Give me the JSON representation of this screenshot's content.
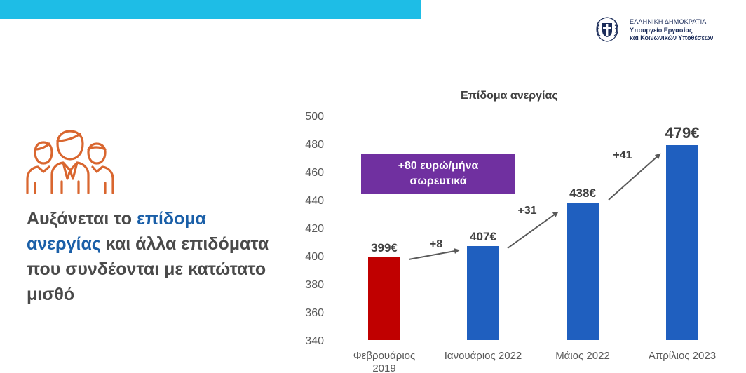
{
  "header": {
    "accent_color": "#1ebde6"
  },
  "logo": {
    "line1": "ΕΛΛΗΝΙΚΗ ΔΗΜΟΚΡΑΤΙΑ",
    "line2": "Υπουργείο Εργασίας",
    "line3": "και Κοινωνικών Υποθέσεων",
    "icon": "greek-coat-of-arms-icon"
  },
  "left_panel": {
    "icon": "people-group-icon",
    "headline": {
      "part1": "Αυξάνεται το ",
      "highlight1": "επίδομα",
      "highlight2": "ανεργίας",
      "part2": " και άλλα επιδόματα που συνδέονται με κατώτατο μισθό"
    },
    "highlight_color": "#1a5fa8"
  },
  "callout": {
    "line1": "+80 ευρώ/μήνα",
    "line2": "σωρευτικά",
    "color": "#7030a0"
  },
  "chart_data": {
    "type": "bar",
    "title": "Επίδομα ανεργίας",
    "categories": [
      "Φεβρουάριος 2019",
      "Ιανουάριος 2022",
      "Μάιος 2022",
      "Απρίλιος 2023"
    ],
    "values": [
      399,
      407,
      438,
      479
    ],
    "value_labels": [
      "399€",
      "407€",
      "438€",
      "479€"
    ],
    "bar_colors": [
      "#c00000",
      "#1f5fbf",
      "#1f5fbf",
      "#1f5fbf"
    ],
    "ylim": [
      340,
      500
    ],
    "yticks": [
      340,
      360,
      380,
      400,
      420,
      440,
      460,
      480,
      500
    ],
    "grid": false,
    "increments": [
      "+8",
      "+31",
      "+41"
    ]
  }
}
